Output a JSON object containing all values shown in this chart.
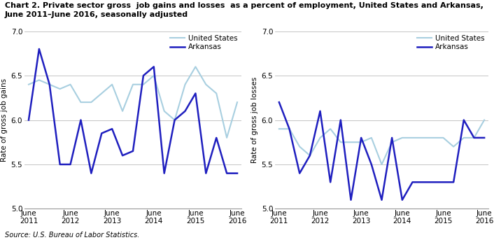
{
  "title_line1": "Chart 2. Private sector gross  job gains and losses  as a percent of employment, United States and Arkansas,",
  "title_line2": "June 2011–June 2016, seasonally adjusted",
  "source": "Source: U.S. Bureau of Labor Statistics.",
  "left_ylabel": "Rate of gross job gains",
  "right_ylabel": "Rate of gross job losses",
  "x_labels": [
    "June\n2011",
    "June\n2012",
    "June\n2013",
    "June\n2014",
    "June\n2015",
    "June\n2016"
  ],
  "x_positions": [
    0,
    2,
    4,
    6,
    8,
    10
  ],
  "ylim": [
    5.0,
    7.0
  ],
  "yticks": [
    5.0,
    5.5,
    6.0,
    6.5,
    7.0
  ],
  "us_color": "#a8cfe0",
  "ar_color": "#1f1fbf",
  "gains_us_x": [
    0,
    0.5,
    1,
    1.5,
    2,
    2.5,
    3,
    3.5,
    4,
    4.5,
    5,
    5.5,
    6,
    6.5,
    7,
    7.5,
    8,
    8.5,
    9,
    9.5,
    10
  ],
  "gains_us_y": [
    6.4,
    6.45,
    6.4,
    6.35,
    6.4,
    6.2,
    6.2,
    6.3,
    6.4,
    6.1,
    6.4,
    6.4,
    6.5,
    6.1,
    6.0,
    6.4,
    6.6,
    6.4,
    6.3,
    5.8,
    6.2
  ],
  "gains_ar_y": [
    6.0,
    6.8,
    6.4,
    5.5,
    5.5,
    6.0,
    5.4,
    5.85,
    5.9,
    5.6,
    5.65,
    6.5,
    6.6,
    5.4,
    6.0,
    6.1,
    6.3,
    5.4,
    5.8,
    5.4,
    5.4
  ],
  "losses_us_x": [
    0,
    0.5,
    1,
    1.5,
    2,
    2.5,
    3,
    3.5,
    4,
    4.5,
    5,
    5.5,
    6,
    6.5,
    7,
    7.5,
    8,
    8.5,
    9,
    9.5,
    10
  ],
  "losses_us_y": [
    5.9,
    5.9,
    5.7,
    5.6,
    5.8,
    5.9,
    5.75,
    5.75,
    5.75,
    5.8,
    5.5,
    5.75,
    5.8,
    5.8,
    5.8,
    5.8,
    5.8,
    5.7,
    5.8,
    5.8,
    6.0
  ],
  "losses_ar_y": [
    6.2,
    5.9,
    5.4,
    5.6,
    6.1,
    5.3,
    6.0,
    5.1,
    5.8,
    5.5,
    5.1,
    5.8,
    5.1,
    5.3,
    5.3,
    5.3,
    5.3,
    5.3,
    6.0,
    5.8,
    5.8
  ]
}
